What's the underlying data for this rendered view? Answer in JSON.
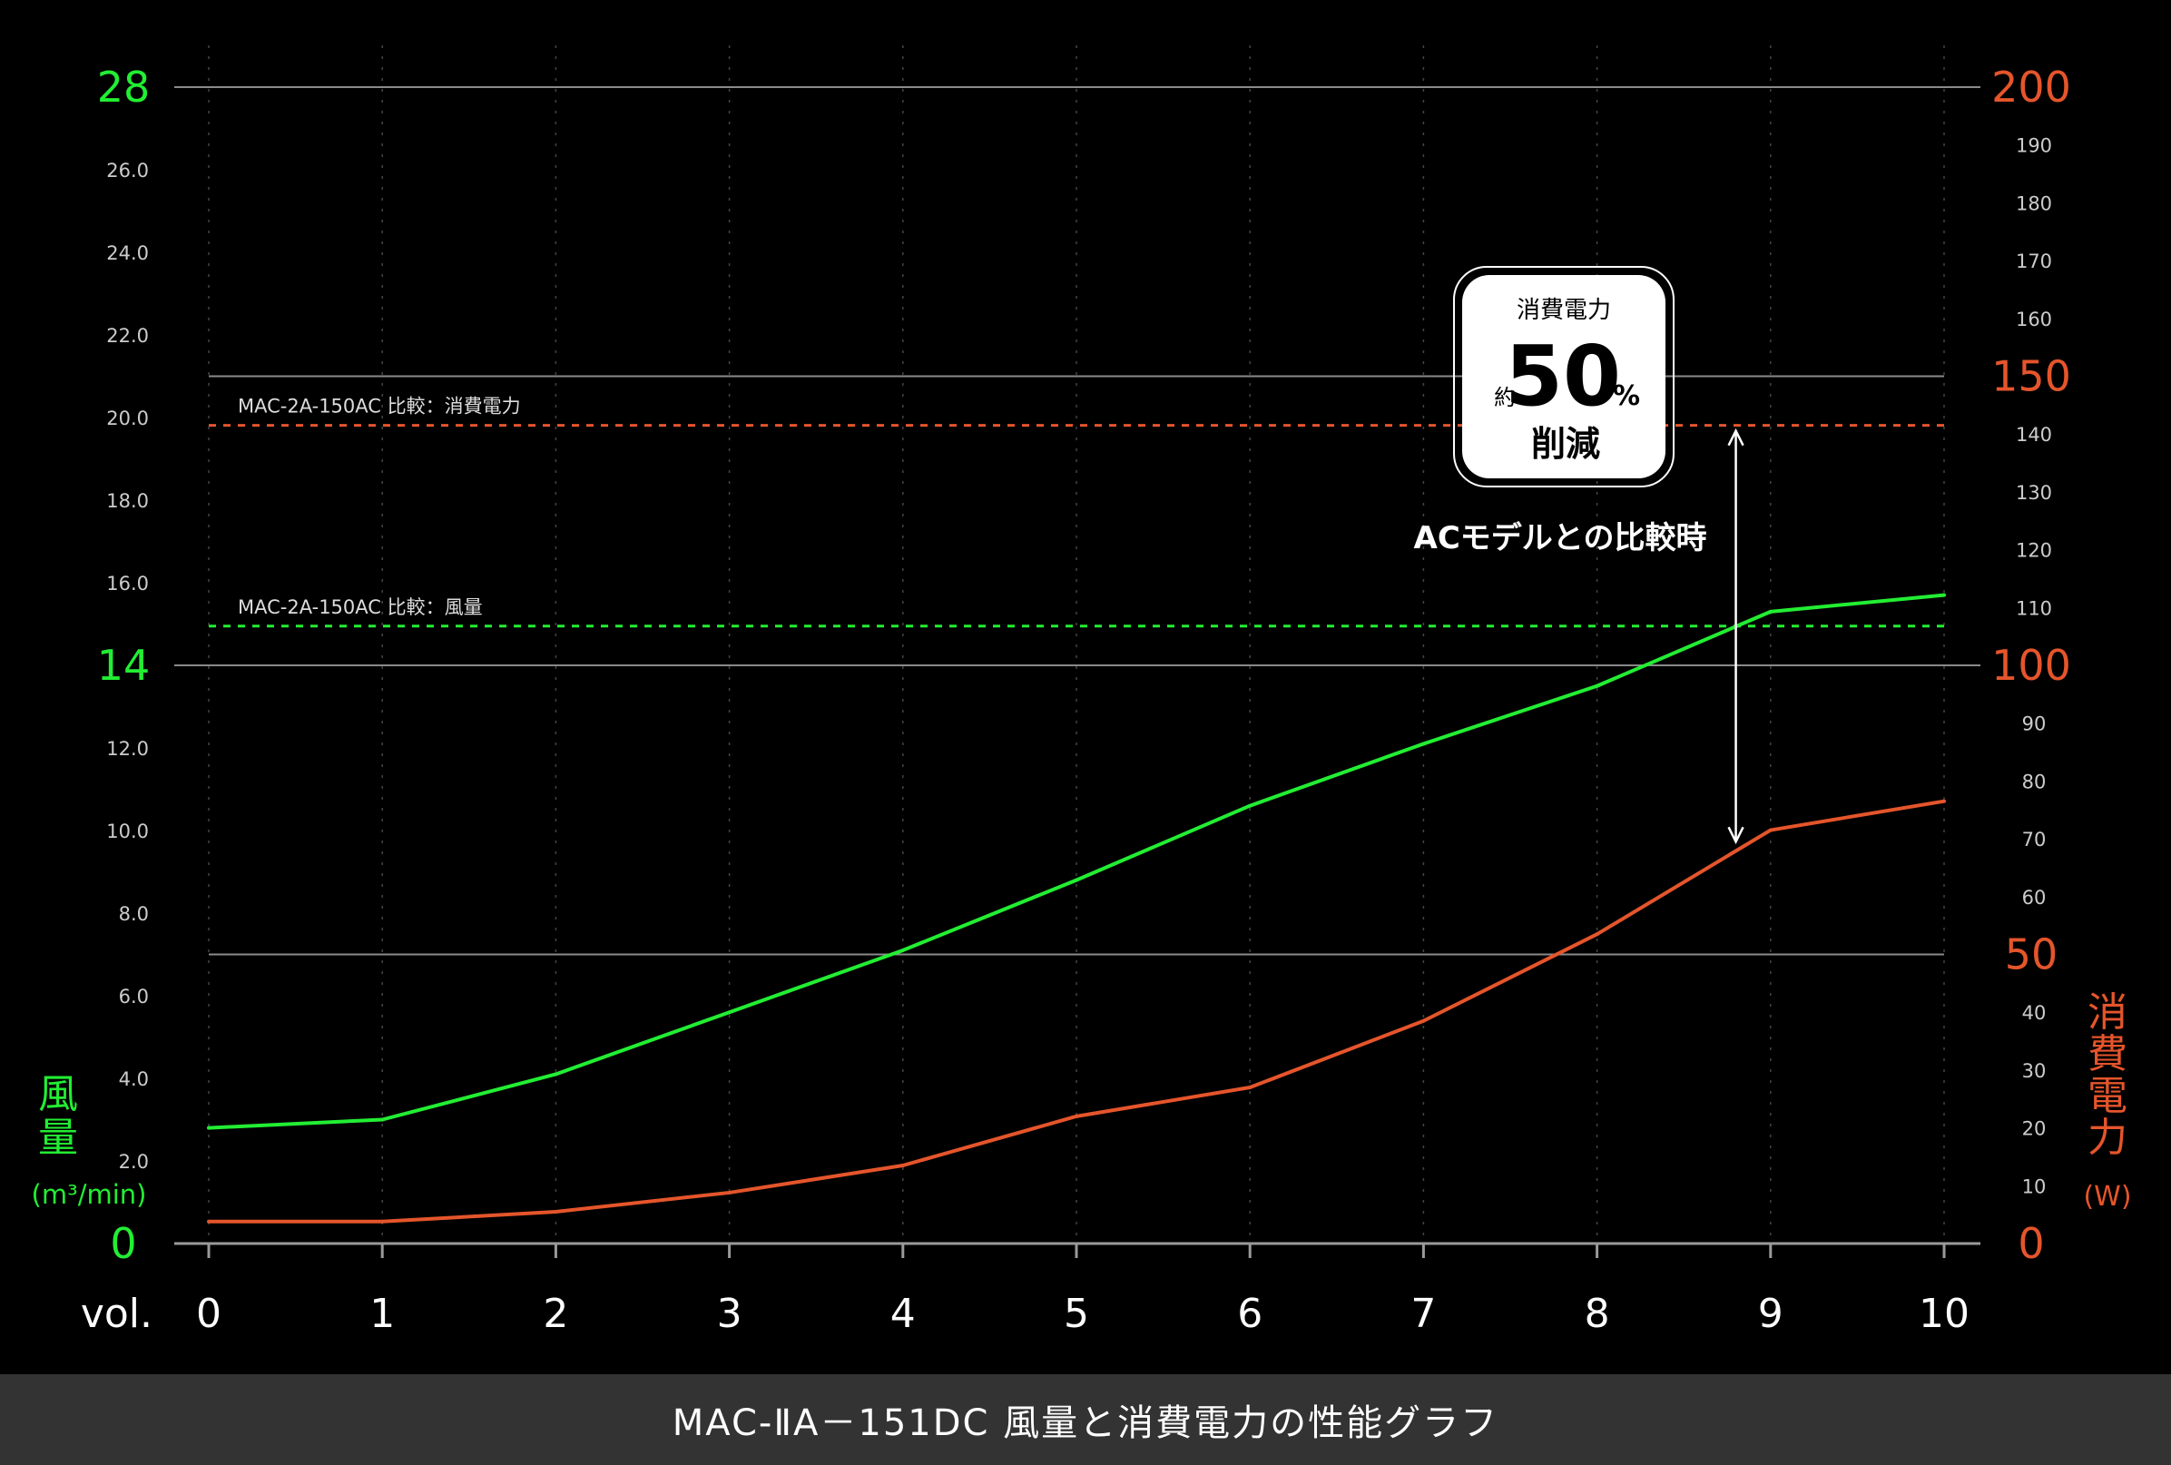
{
  "caption": "MAC-ⅡA－151DC 風量と消費電力の性能グラフ",
  "colors": {
    "airflow": "#22ee33",
    "power": "#e5552b",
    "background": "#000000",
    "caption_bar": "#333333",
    "text": "#ffffff"
  },
  "chart_data": {
    "type": "line",
    "x_label": "vol.",
    "x": [
      0,
      1,
      2,
      3,
      4,
      5,
      6,
      7,
      8,
      9,
      10
    ],
    "x_ticks": [
      "0",
      "1",
      "2",
      "3",
      "4",
      "5",
      "6",
      "7",
      "8",
      "9",
      "10"
    ],
    "grid": true,
    "left_axis": {
      "label": "風量",
      "unit": "(m³/min)",
      "range": [
        0,
        28
      ],
      "major_ticks": [
        "0",
        "14",
        "28"
      ],
      "minor_ticks": [
        "2.0",
        "4.0",
        "6.0",
        "8.0",
        "10.0",
        "12.0",
        "16.0",
        "18.0",
        "20.0",
        "22.0",
        "24.0",
        "26.0"
      ]
    },
    "right_axis": {
      "label": "消費電力",
      "unit": "(W)",
      "range": [
        0,
        200
      ],
      "major_ticks": [
        "0",
        "50",
        "100",
        "150",
        "200"
      ],
      "minor_ticks": [
        "10",
        "20",
        "30",
        "40",
        "60",
        "70",
        "80",
        "90",
        "110",
        "120",
        "130",
        "140",
        "160",
        "170",
        "180",
        "190"
      ]
    },
    "series": [
      {
        "key": "airflow",
        "axis": "left",
        "values": [
          2.8,
          3.0,
          4.1,
          5.6,
          7.1,
          8.8,
          10.6,
          12.1,
          13.5,
          15.3,
          15.7
        ]
      },
      {
        "key": "power",
        "axis": "right",
        "values": [
          3.8,
          3.8,
          5.5,
          8.8,
          13.5,
          22.0,
          27.0,
          38.5,
          53.5,
          71.5,
          76.5
        ]
      }
    ],
    "reference_lines": [
      {
        "axis": "right",
        "value": 141.5,
        "label": "MAC-2A-150AC 比較：消費電力",
        "style": "dashed",
        "color": "#e5552b"
      },
      {
        "axis": "left",
        "value": 14.95,
        "label": "MAC-2A-150AC 比較：風量",
        "style": "dashed",
        "color": "#22ee33"
      }
    ],
    "annotation": {
      "box_top": "消費電力",
      "prefix": "約",
      "value": "50",
      "unit": "%",
      "box_bottom": "削減",
      "caption": "ACモデルとの比較時",
      "arrow_x": 8.8
    }
  }
}
